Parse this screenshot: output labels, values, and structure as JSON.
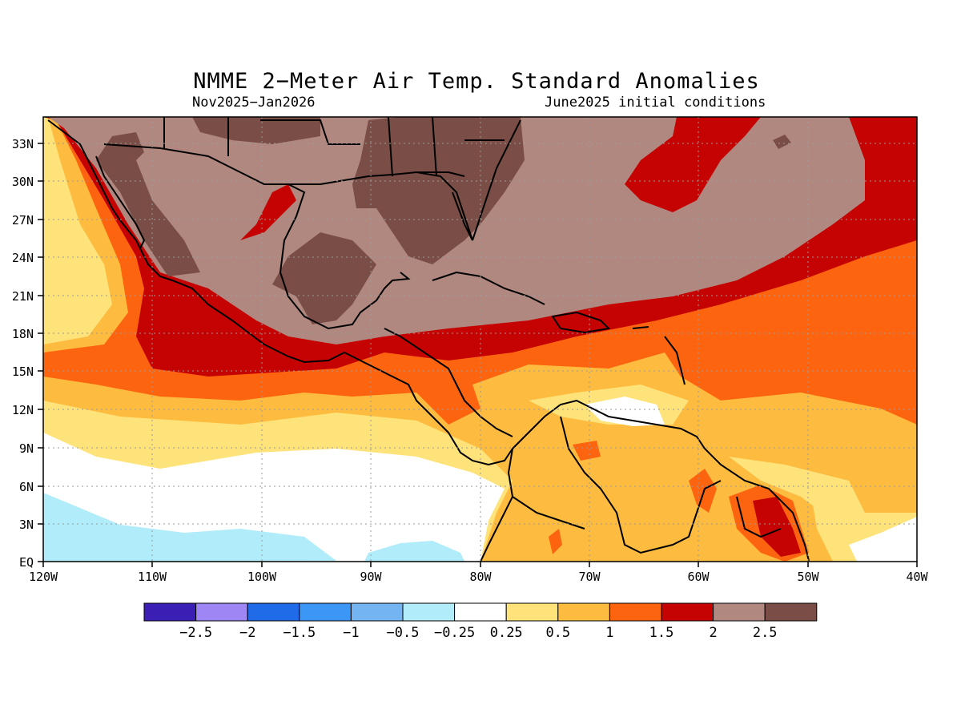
{
  "map": {
    "title": "NMME 2−Meter Air Temp. Standard Anomalies",
    "subtitle_left": "Nov2025−Jan2026",
    "subtitle_right": "June2025 initial conditions",
    "lon_labels": [
      "120W",
      "110W",
      "100W",
      "90W",
      "80W",
      "70W",
      "60W",
      "50W",
      "40W"
    ],
    "lat_labels": [
      "EQ",
      "3N",
      "6N",
      "9N",
      "12N",
      "15N",
      "18N",
      "21N",
      "24N",
      "27N",
      "30N",
      "33N"
    ],
    "extent": {
      "lon": [
        -120,
        -40
      ],
      "lat": [
        0,
        35
      ]
    },
    "grid": true
  },
  "legend": {
    "colors": [
      "#3b1fb4",
      "#9e86f5",
      "#1f6be8",
      "#3c96f5",
      "#74b4f2",
      "#b0ecf9",
      "#ffffff",
      "#fde37a",
      "#fdbb3f",
      "#fd6410",
      "#c60303",
      "#b08880",
      "#7a4e46"
    ],
    "labels": [
      "−2.5",
      "−2",
      "−1.5",
      "−1",
      "−0.5",
      "−0.25",
      "0.25",
      "0.5",
      "1",
      "1.5",
      "2",
      "2.5"
    ]
  },
  "colors": {
    "ltblue": "#b0ecf9",
    "white": "#ffffff",
    "yellow": "#fde37a",
    "gold": "#fdbb3f",
    "orange": "#fd6410",
    "red": "#c60303",
    "taupe": "#b08880",
    "brown": "#7a4e46"
  }
}
